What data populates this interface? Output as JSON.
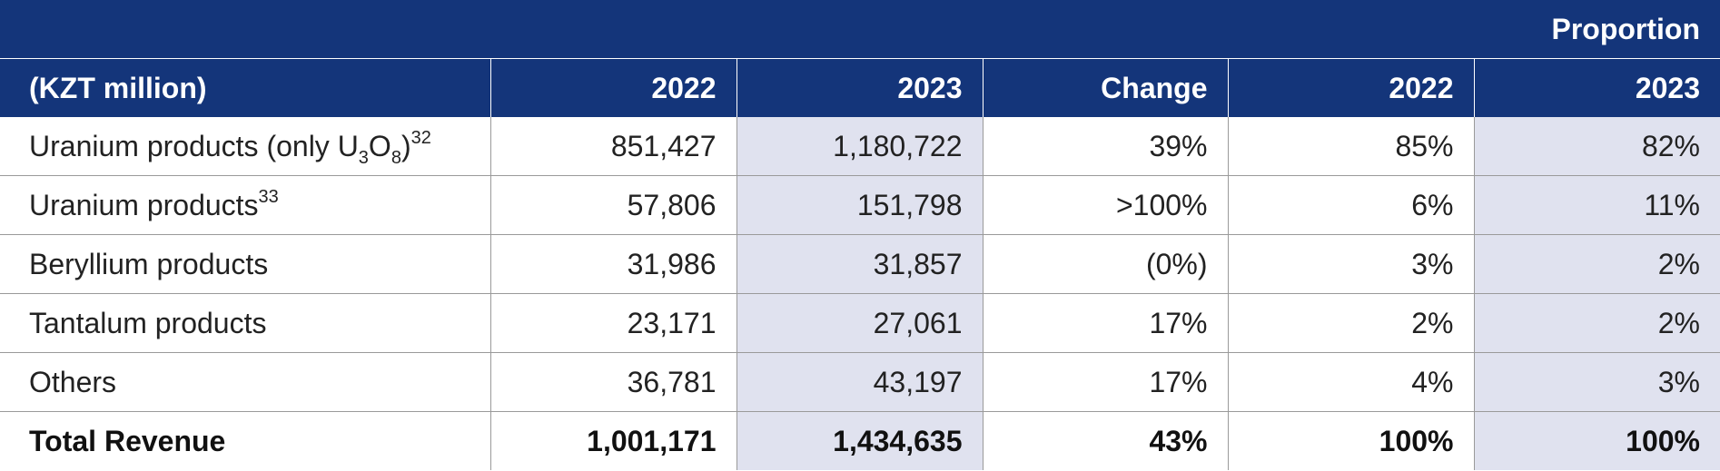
{
  "table": {
    "group_header": "Proportion",
    "unit_label": "(KZT million)",
    "columns": [
      "2022",
      "2023",
      "Change",
      "2022",
      "2023"
    ],
    "rows": [
      {
        "label": "Uranium products (only U",
        "label_sub1": "3",
        "label_mid": "O",
        "label_sub2": "8",
        "label_end": ")",
        "footnote": "32",
        "values": [
          "851,427",
          "1,180,722",
          "39%",
          "85%",
          "82%"
        ]
      },
      {
        "label": "Uranium products",
        "footnote": "33",
        "values": [
          "57,806",
          "151,798",
          ">100%",
          "6%",
          "11%"
        ]
      },
      {
        "label": "Beryllium products",
        "values": [
          "31,986",
          "31,857",
          "(0%)",
          "3%",
          "2%"
        ]
      },
      {
        "label": "Tantalum products",
        "values": [
          "23,171",
          "27,061",
          "17%",
          "2%",
          "2%"
        ]
      },
      {
        "label": "Others",
        "values": [
          "36,781",
          "43,197",
          "17%",
          "4%",
          "3%"
        ]
      },
      {
        "label": "Total Revenue",
        "values": [
          "1,001,171",
          "1,434,635",
          "43%",
          "100%",
          "100%"
        ]
      }
    ],
    "colors": {
      "header_bg": "#14357a",
      "shaded_cell": "#e0e2ef",
      "grid_line": "#9a9a9a"
    }
  }
}
